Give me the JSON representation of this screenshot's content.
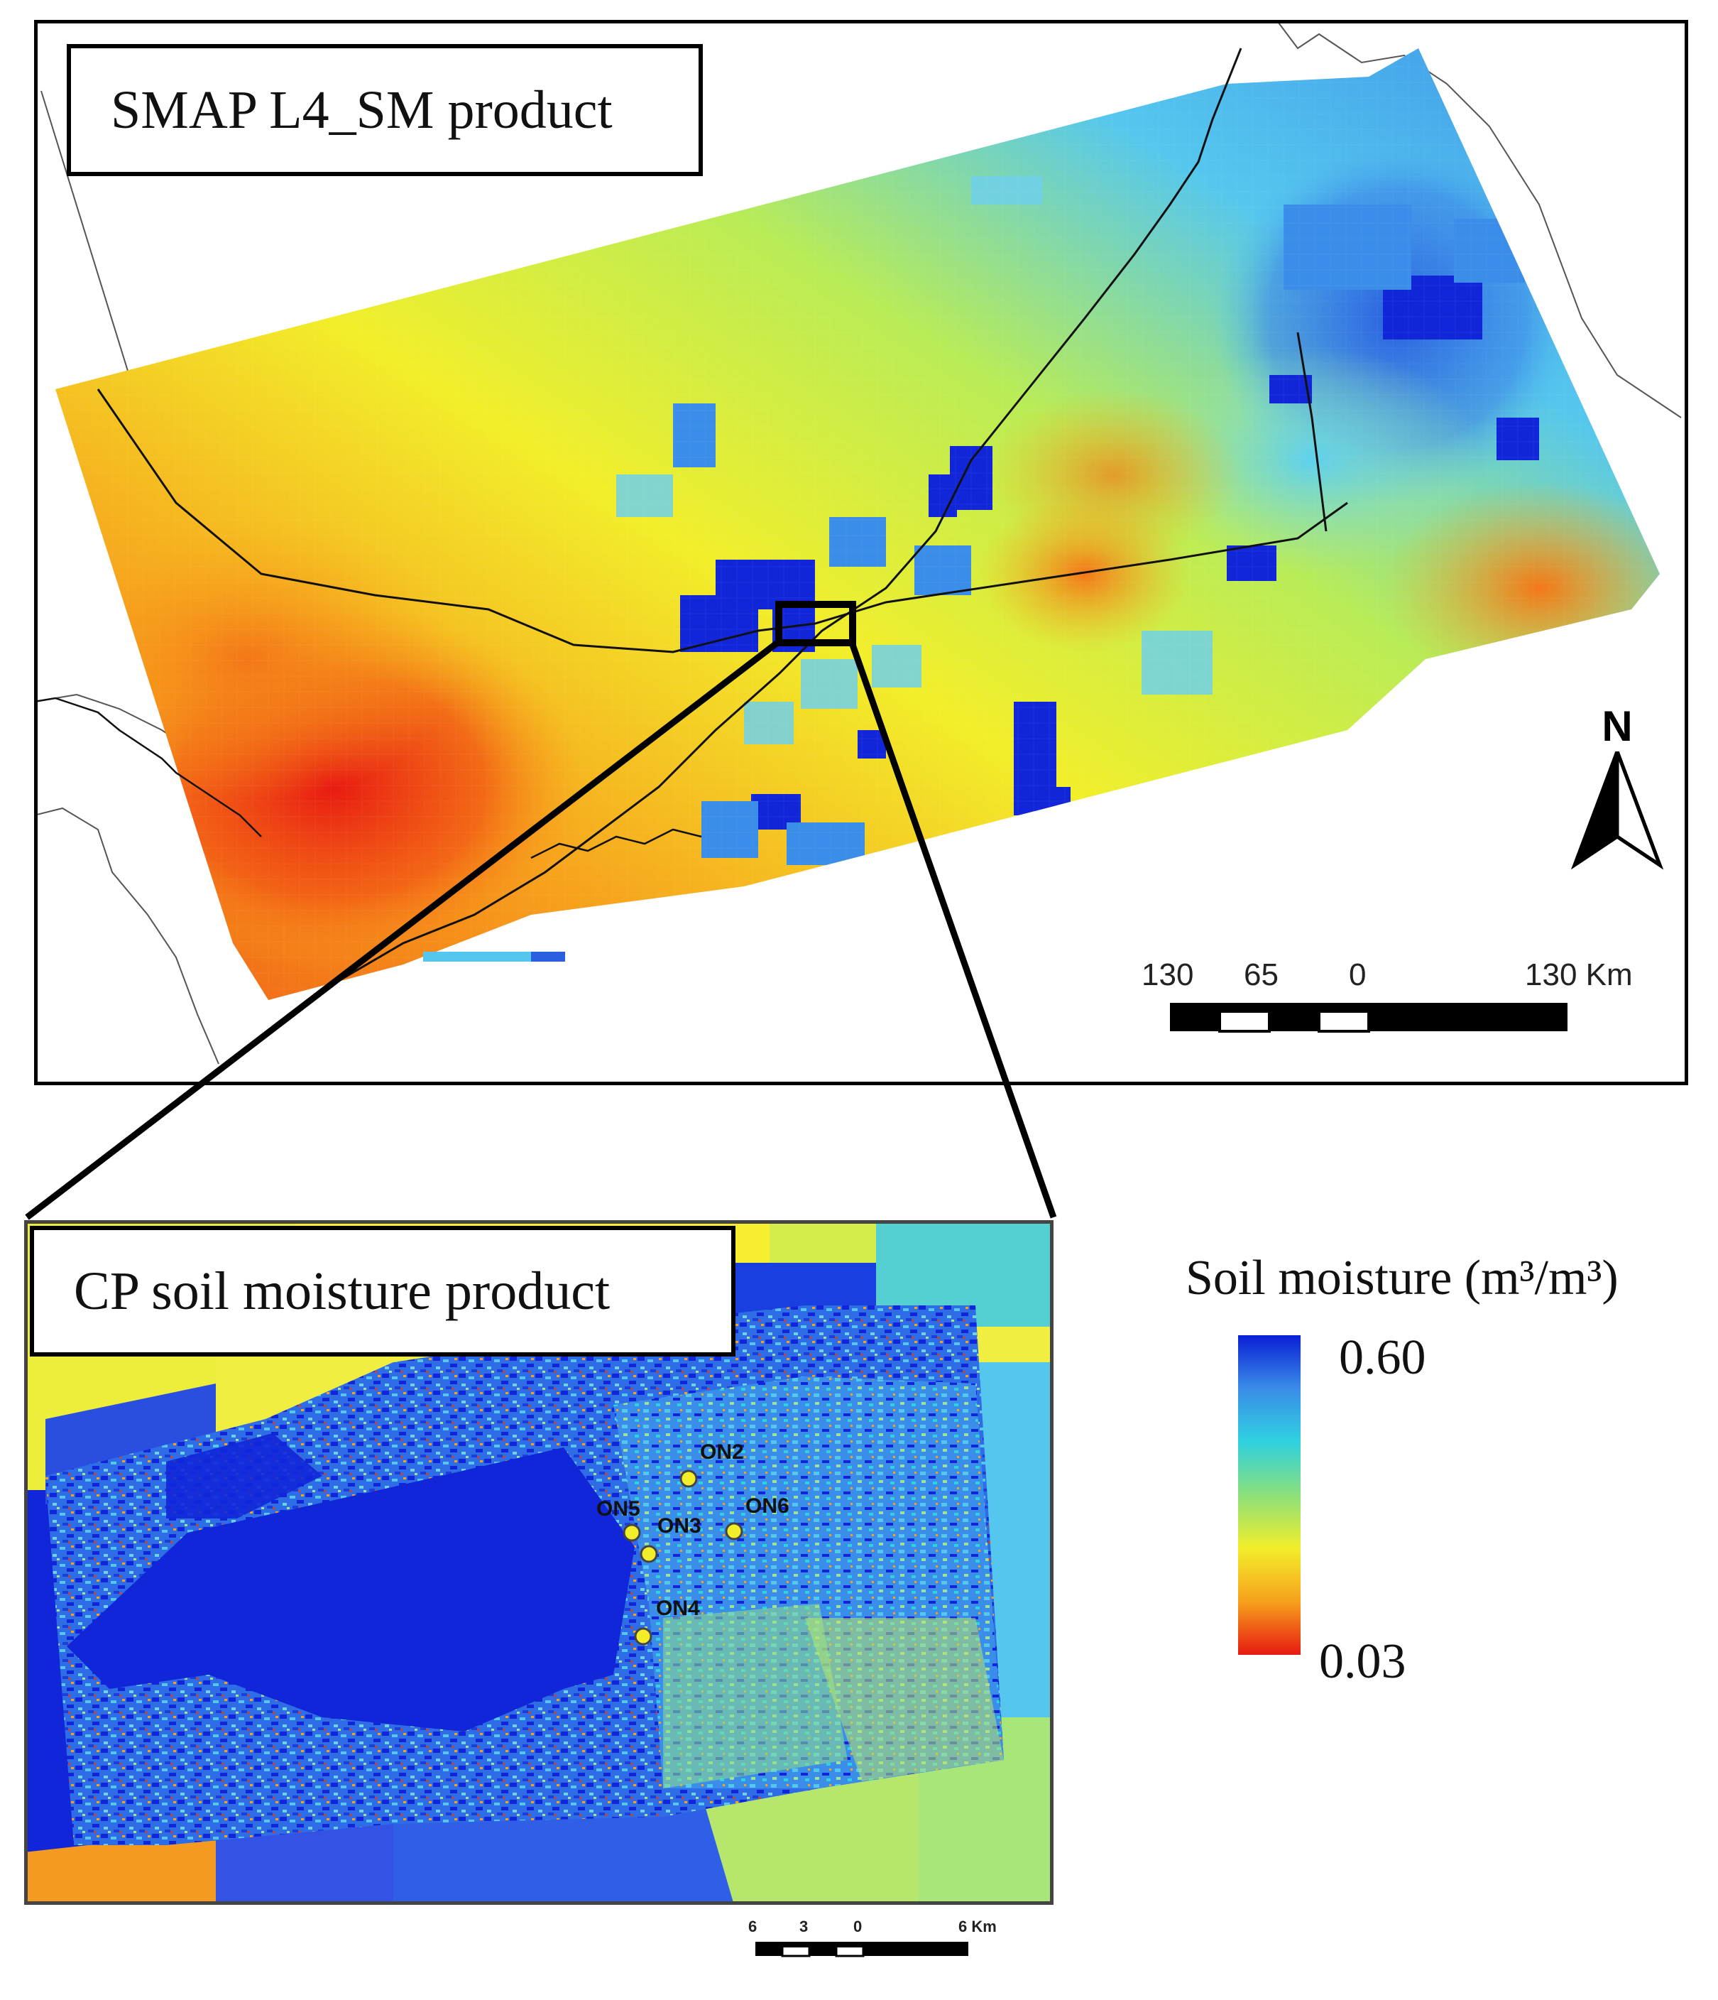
{
  "top_map": {
    "title": "SMAP L4_SM product",
    "north_label": "N",
    "scale_bar": {
      "ticks": [
        "130",
        "65",
        "0",
        "130 Km"
      ]
    }
  },
  "bottom_map": {
    "title": "CP soil moisture product",
    "sites": [
      "ON2",
      "ON5",
      "ON3",
      "ON6",
      "ON4"
    ],
    "scale_bar": {
      "ticks": [
        "6",
        "3",
        "0",
        "6 Km"
      ]
    }
  },
  "legend": {
    "title": "Soil moisture (m³/m³)",
    "max": "0.60",
    "min": "0.03",
    "colors": [
      "#0a1fd6",
      "#3a8de8",
      "#2fd1e0",
      "#8be07a",
      "#f2ee2a",
      "#f7a11c",
      "#e81a12"
    ]
  }
}
